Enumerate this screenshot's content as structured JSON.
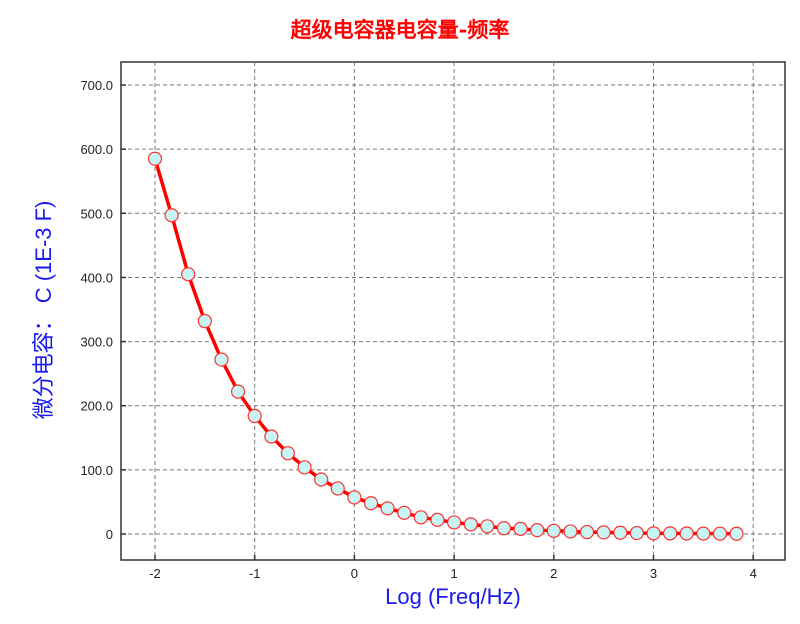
{
  "chart_data": {
    "type": "line",
    "title": "超级电容器电容量-频率",
    "xlabel": "Log (Freq/Hz)",
    "ylabel": "微分电容： C (1E-3 F)",
    "xlim": [
      -2.33,
      4.33
    ],
    "ylim": [
      -40,
      740
    ],
    "xticks": [
      "-2",
      "-1",
      "0",
      "1",
      "2",
      "3",
      "4"
    ],
    "xtick_values": [
      -2,
      -1,
      0,
      1,
      2,
      3,
      4
    ],
    "yticks": [
      "0",
      "100.0",
      "200.0",
      "300.0",
      "400.0",
      "500.0",
      "600.0",
      "700.0"
    ],
    "ytick_values": [
      0,
      100,
      200,
      300,
      400,
      500,
      600,
      700
    ],
    "grid": true,
    "line_color": "#ff0000",
    "marker_fill": "#c8f4f4",
    "marker_edge": "#ff3030",
    "x": [
      -2.0,
      -1.833,
      -1.667,
      -1.5,
      -1.333,
      -1.167,
      -1.0,
      -0.833,
      -0.667,
      -0.5,
      -0.333,
      -0.167,
      0.0,
      0.167,
      0.333,
      0.5,
      0.667,
      0.833,
      1.0,
      1.167,
      1.333,
      1.5,
      1.667,
      1.833,
      2.0,
      2.167,
      2.333,
      2.5,
      2.667,
      2.833,
      3.0,
      3.167,
      3.333,
      3.5,
      3.667,
      3.833
    ],
    "y": [
      585,
      497,
      405,
      332,
      272,
      222,
      184,
      152,
      126,
      104,
      85,
      71,
      57,
      48,
      40,
      33,
      26,
      22,
      18,
      15,
      12,
      9,
      8,
      6,
      5,
      4,
      3,
      2.5,
      2,
      1.5,
      1,
      1,
      0.8,
      0.6,
      0.5,
      0.4
    ]
  }
}
